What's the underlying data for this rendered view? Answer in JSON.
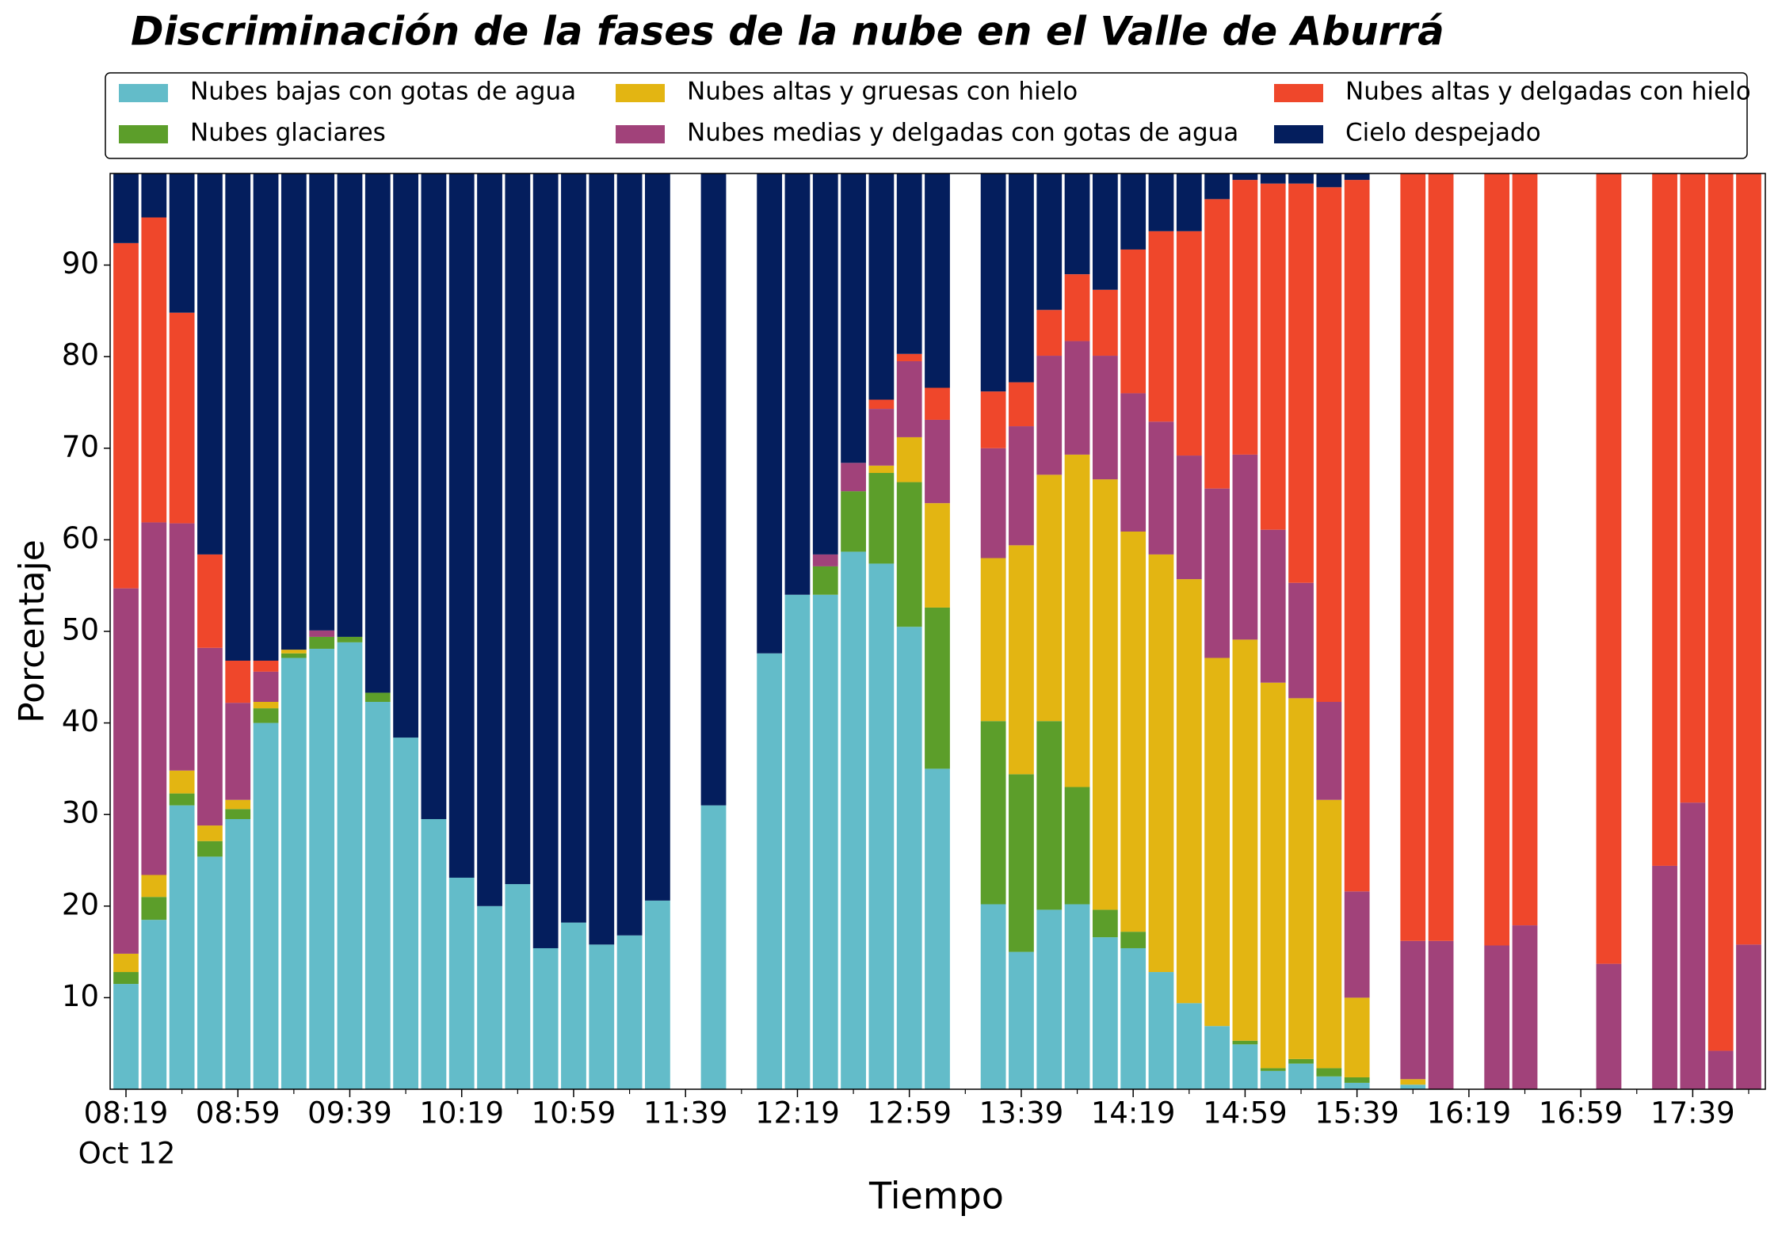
{
  "chart_data": {
    "type": "stacked_bar",
    "title": "Discriminación de la fases de la nube en el Valle de Aburrá",
    "xlabel": "Tiempo",
    "ylabel": "Porcentaje",
    "x_sublabel": "Oct 12",
    "categories": [
      "08:19",
      null,
      null,
      null,
      "08:59",
      null,
      null,
      null,
      "09:39",
      null,
      null,
      null,
      "10:19",
      null,
      null,
      null,
      "10:59",
      null,
      null,
      null,
      "11:39",
      null,
      null,
      null,
      "12:19",
      null,
      null,
      null,
      "12:59",
      null,
      null,
      null,
      "13:39",
      null,
      null,
      null,
      "14:19",
      null,
      null,
      null,
      "14:59",
      null,
      null,
      null,
      "15:39",
      null,
      null,
      null,
      "16:19",
      null,
      null,
      null,
      "16:59",
      null,
      null,
      null,
      "17:39",
      null,
      null
    ],
    "ylim": [
      0,
      100
    ],
    "yticks": [
      10,
      20,
      30,
      40,
      50,
      60,
      70,
      80,
      90
    ],
    "grid": false,
    "legend": "upper center",
    "series": [
      {
        "name": "Nubes bajas con gotas de agua",
        "color": "#63bcc9",
        "values": [
          11.5,
          18.5,
          31,
          25.4,
          29.5,
          40,
          47.1,
          48.1,
          48.8,
          42.3,
          38.4,
          29.5,
          23.1,
          20,
          22.4,
          15.4,
          18.2,
          15.8,
          16.8,
          20.6,
          null,
          31,
          null,
          47.6,
          54,
          54,
          58.7,
          57.4,
          50.5,
          35,
          null,
          20.2,
          15,
          19.6,
          20.2,
          16.6,
          15.4,
          12.8,
          9.4,
          6.9,
          4.9,
          2,
          2.8,
          1.4,
          0.7,
          null,
          0.5,
          0,
          null,
          0,
          0,
          null,
          null,
          0,
          null,
          0,
          0,
          0,
          0
        ]
      },
      {
        "name": "Nubes glaciares",
        "color": "#5c9e2a",
        "values": [
          1.3,
          2.5,
          1.3,
          1.7,
          1.1,
          1.6,
          0.5,
          1.3,
          0.6,
          1.0,
          0,
          0,
          0,
          0,
          0,
          0,
          0,
          0,
          0,
          0,
          null,
          0,
          null,
          0,
          0,
          3.1,
          6.6,
          9.9,
          15.8,
          17.6,
          null,
          20,
          19.4,
          20.6,
          12.8,
          3,
          1.8,
          0,
          0,
          0,
          0.4,
          0.3,
          0.5,
          0.9,
          0.6,
          null,
          0,
          0,
          null,
          0,
          0,
          null,
          null,
          0,
          null,
          0,
          0,
          0,
          0
        ]
      },
      {
        "name": "Nubes altas y gruesas con hielo",
        "color": "#e3b512",
        "values": [
          2.0,
          2.4,
          2.5,
          1.7,
          1.0,
          0.7,
          0.4,
          0,
          0,
          0,
          0,
          0,
          0,
          0,
          0,
          0,
          0,
          0,
          0,
          0,
          null,
          0,
          null,
          0,
          0,
          0,
          0,
          0.8,
          4.9,
          11.4,
          null,
          17.8,
          25,
          26.9,
          36.3,
          47,
          43.7,
          45.6,
          46.3,
          40.2,
          43.8,
          42.1,
          39.4,
          29.3,
          8.7,
          null,
          0.6,
          0,
          null,
          0,
          0,
          null,
          null,
          0,
          null,
          0,
          0,
          0,
          0
        ]
      },
      {
        "name": "Nubes medias y delgadas con gotas de agua",
        "color": "#a1427a",
        "values": [
          39.9,
          38.5,
          27,
          19.4,
          10.6,
          3.3,
          0,
          0.7,
          0,
          0,
          0,
          0,
          0,
          0,
          0,
          0,
          0,
          0,
          0,
          0,
          null,
          0,
          null,
          0,
          0,
          1.3,
          3.1,
          6.2,
          8.3,
          9.1,
          null,
          12,
          13,
          13,
          12.4,
          13.5,
          15.1,
          14.5,
          13.5,
          18.5,
          20.2,
          16.7,
          12.6,
          10.7,
          11.6,
          null,
          15.1,
          16.2,
          null,
          15.7,
          17.9,
          null,
          null,
          13.7,
          null,
          24.4,
          31.3,
          4.2,
          15.8
        ]
      },
      {
        "name": "Nubes altas y delgadas con hielo",
        "color": "#ef472b",
        "values": [
          37.7,
          33.3,
          23,
          10.2,
          4.6,
          1.2,
          0,
          0,
          0,
          0,
          0,
          0,
          0,
          0,
          0,
          0,
          0,
          0,
          0,
          0,
          null,
          0,
          null,
          0,
          0,
          0,
          0,
          1.0,
          0.8,
          3.5,
          null,
          6.2,
          4.8,
          5,
          7.3,
          7.2,
          15.7,
          20.8,
          24.5,
          31.6,
          30,
          37.8,
          43.6,
          56.2,
          77.7,
          null,
          83.8,
          83.8,
          null,
          84.3,
          82.1,
          null,
          null,
          86.3,
          null,
          75.6,
          68.7,
          95.8,
          84.2
        ]
      },
      {
        "name": "Cielo despejado",
        "color": "#041e5d",
        "values": [
          7.6,
          4.8,
          15.2,
          41.6,
          53.2,
          53.2,
          52,
          49.9,
          50.6,
          56.7,
          61.6,
          70.5,
          76.9,
          80,
          77.6,
          84.6,
          81.8,
          84.2,
          83.2,
          79.4,
          null,
          69,
          null,
          52.4,
          46,
          41.6,
          31.6,
          24.7,
          19.7,
          23.4,
          null,
          23.8,
          22.8,
          14.9,
          11,
          12.7,
          8.3,
          6.3,
          6.3,
          2.8,
          0.7,
          1.1,
          1.1,
          1.5,
          0.7,
          null,
          0,
          0,
          null,
          0,
          0,
          null,
          null,
          0,
          null,
          0,
          0,
          0,
          0
        ]
      }
    ]
  }
}
